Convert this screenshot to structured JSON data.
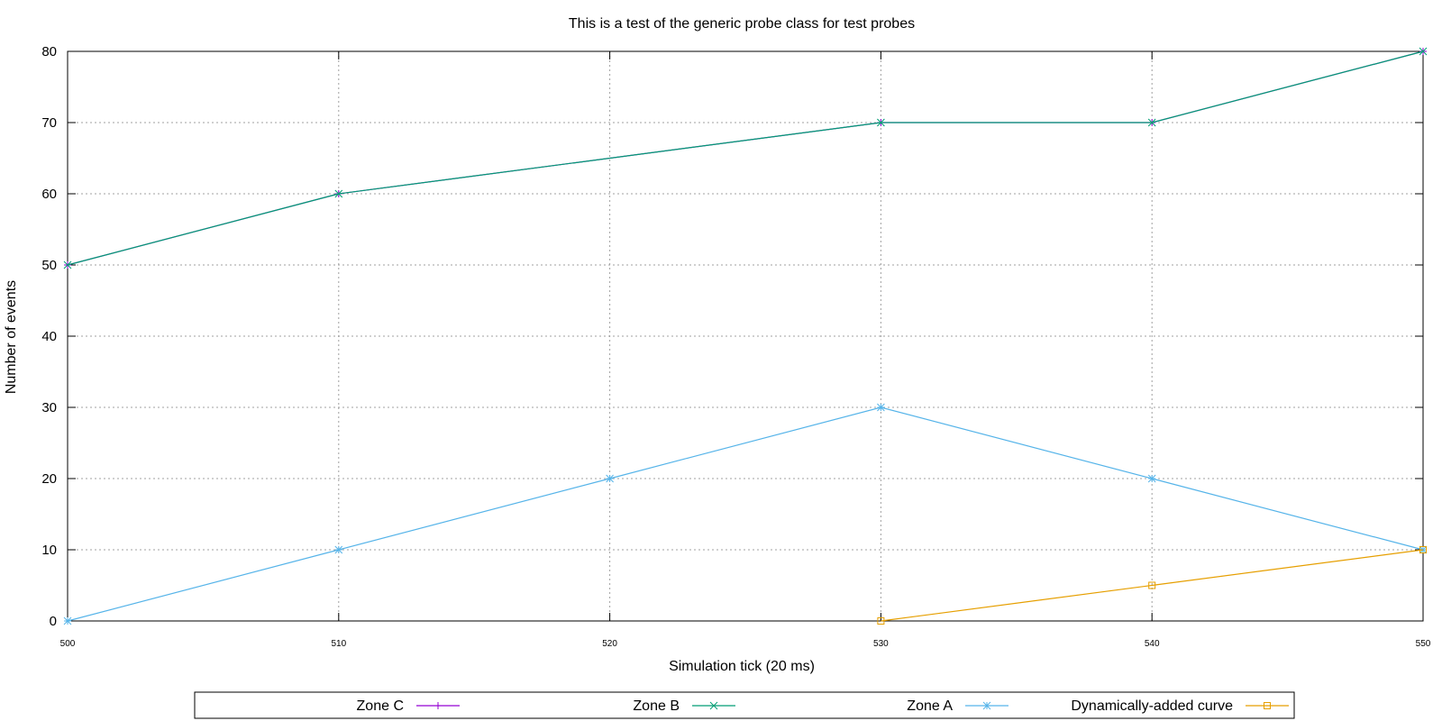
{
  "chart_data": {
    "type": "line",
    "title": "This is a test of the generic probe class for test probes",
    "xlabel": "Simulation tick (20 ms)",
    "ylabel": "Number of events",
    "xlim": [
      500,
      550
    ],
    "ylim": [
      0,
      80
    ],
    "x_ticks": [
      500,
      510,
      520,
      530,
      540,
      550
    ],
    "y_ticks": [
      0,
      10,
      20,
      30,
      40,
      50,
      60,
      70,
      80
    ],
    "x_tick_labels": [
      "500",
      "510",
      "520",
      "530",
      "540",
      "550"
    ],
    "y_tick_labels": [
      "0",
      "10",
      "20",
      "30",
      "40",
      "50",
      "60",
      "70",
      "80"
    ],
    "grid": true,
    "legend_position": "bottom",
    "series": [
      {
        "name": "Zone C",
        "color": "#9400d3",
        "marker": "plus",
        "points": [
          [
            500,
            50
          ],
          [
            510,
            60
          ],
          [
            530,
            70
          ],
          [
            540,
            70
          ],
          [
            550,
            80
          ]
        ]
      },
      {
        "name": "Zone B",
        "color": "#009e73",
        "marker": "cross",
        "points": [
          [
            500,
            50
          ],
          [
            510,
            60
          ],
          [
            530,
            70
          ],
          [
            540,
            70
          ],
          [
            550,
            80
          ]
        ]
      },
      {
        "name": "Zone A",
        "color": "#56b4e9",
        "marker": "star",
        "points": [
          [
            500,
            0
          ],
          [
            510,
            10
          ],
          [
            520,
            20
          ],
          [
            530,
            30
          ],
          [
            540,
            20
          ],
          [
            550,
            10
          ]
        ]
      },
      {
        "name": "Dynamically-added curve",
        "color": "#e69f00",
        "marker": "square",
        "points": [
          [
            530,
            0
          ],
          [
            540,
            5
          ],
          [
            550,
            10
          ]
        ]
      }
    ]
  }
}
